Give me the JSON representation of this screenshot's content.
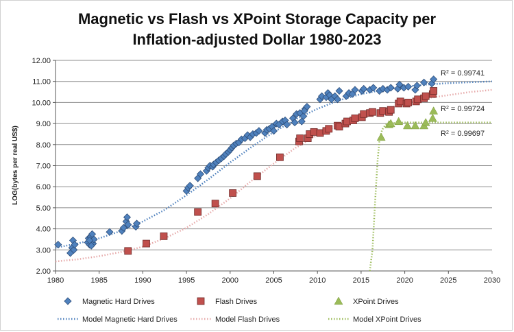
{
  "chart_data": {
    "type": "scatter",
    "title_lines": [
      "Magnetic vs Flash vs XPoint Storage Capacity per",
      "Inflation-adjusted Dollar 1980-2023"
    ],
    "xlabel": "",
    "ylabel": "LOG(bytes per real US$)",
    "xlim": [
      1980,
      2030
    ],
    "ylim": [
      2.0,
      12.0
    ],
    "xticks": [
      "1980",
      "1985",
      "1990",
      "1995",
      "2000",
      "2005",
      "2010",
      "2015",
      "2020",
      "2025",
      "2030"
    ],
    "yticks": [
      "2.00",
      "3.00",
      "4.00",
      "5.00",
      "6.00",
      "7.00",
      "8.00",
      "9.00",
      "10.00",
      "11.00",
      "12.00"
    ],
    "grid": "horizontal",
    "legend_position": "bottom",
    "series": [
      {
        "name": "Magnetic Hard Drives",
        "marker": "diamond",
        "color": "#4f81bd",
        "points": [
          [
            1980.3,
            3.25
          ],
          [
            1981.7,
            2.85
          ],
          [
            1981.9,
            3.1
          ],
          [
            1982.0,
            3.45
          ],
          [
            1982.1,
            3.0
          ],
          [
            1982.2,
            3.25
          ],
          [
            1983.7,
            3.35
          ],
          [
            1983.8,
            3.55
          ],
          [
            1983.9,
            3.25
          ],
          [
            1984.0,
            3.6
          ],
          [
            1984.1,
            3.4
          ],
          [
            1984.2,
            3.75
          ],
          [
            1984.3,
            3.3
          ],
          [
            1984.4,
            3.5
          ],
          [
            1984.1,
            3.2
          ],
          [
            1983.9,
            3.45
          ],
          [
            1986.2,
            3.85
          ],
          [
            1987.6,
            3.9
          ],
          [
            1987.8,
            4.05
          ],
          [
            1988.1,
            4.35
          ],
          [
            1988.2,
            4.55
          ],
          [
            1988.3,
            4.2
          ],
          [
            1989.2,
            4.1
          ],
          [
            1989.3,
            4.25
          ],
          [
            1995.0,
            5.8
          ],
          [
            1995.2,
            5.95
          ],
          [
            1995.4,
            6.05
          ],
          [
            1996.3,
            6.4
          ],
          [
            1996.6,
            6.6
          ],
          [
            1997.3,
            6.75
          ],
          [
            1997.5,
            6.9
          ],
          [
            1997.7,
            7.0
          ],
          [
            1998.0,
            6.95
          ],
          [
            1998.1,
            7.05
          ],
          [
            1998.4,
            7.15
          ],
          [
            1998.7,
            7.25
          ],
          [
            1999.0,
            7.35
          ],
          [
            1999.3,
            7.45
          ],
          [
            1999.5,
            7.55
          ],
          [
            1999.8,
            7.65
          ],
          [
            2000.0,
            7.75
          ],
          [
            2000.2,
            7.85
          ],
          [
            2000.4,
            7.95
          ],
          [
            2000.7,
            8.05
          ],
          [
            2001.0,
            8.1
          ],
          [
            2001.3,
            8.25
          ],
          [
            2001.7,
            8.3
          ],
          [
            2002.0,
            8.45
          ],
          [
            2002.3,
            8.35
          ],
          [
            2002.6,
            8.5
          ],
          [
            2003.0,
            8.55
          ],
          [
            2003.3,
            8.65
          ],
          [
            2004.0,
            8.55
          ],
          [
            2004.2,
            8.7
          ],
          [
            2004.5,
            8.75
          ],
          [
            2004.8,
            8.85
          ],
          [
            2005.0,
            8.65
          ],
          [
            2005.3,
            9.0
          ],
          [
            2005.6,
            8.95
          ],
          [
            2006.0,
            9.1
          ],
          [
            2006.3,
            9.15
          ],
          [
            2006.5,
            8.95
          ],
          [
            2007.2,
            9.25
          ],
          [
            2007.4,
            9.05
          ],
          [
            2007.6,
            9.45
          ],
          [
            2008.0,
            9.5
          ],
          [
            2008.2,
            9.1
          ],
          [
            2008.4,
            9.35
          ],
          [
            2008.6,
            9.7
          ],
          [
            2008.8,
            9.8
          ],
          [
            2008.5,
            9.6
          ],
          [
            2010.3,
            10.15
          ],
          [
            2010.5,
            10.3
          ],
          [
            2011.0,
            10.25
          ],
          [
            2011.2,
            10.45
          ],
          [
            2011.4,
            10.35
          ],
          [
            2011.6,
            10.15
          ],
          [
            2012.0,
            10.3
          ],
          [
            2012.3,
            10.15
          ],
          [
            2012.5,
            10.55
          ],
          [
            2013.3,
            10.3
          ],
          [
            2013.6,
            10.45
          ],
          [
            2014.0,
            10.4
          ],
          [
            2014.3,
            10.6
          ],
          [
            2015.1,
            10.55
          ],
          [
            2015.3,
            10.65
          ],
          [
            2016.0,
            10.6
          ],
          [
            2016.4,
            10.7
          ],
          [
            2017.1,
            10.55
          ],
          [
            2017.5,
            10.65
          ],
          [
            2018.0,
            10.6
          ],
          [
            2018.4,
            10.7
          ],
          [
            2019.2,
            10.65
          ],
          [
            2019.4,
            10.85
          ],
          [
            2019.9,
            10.7
          ],
          [
            2020.4,
            10.75
          ],
          [
            2021.2,
            10.6
          ],
          [
            2021.4,
            10.8
          ],
          [
            2022.2,
            10.95
          ],
          [
            2023.1,
            10.9
          ],
          [
            2023.3,
            11.1
          ]
        ]
      },
      {
        "name": "Flash Drives",
        "marker": "square",
        "color": "#c0504d",
        "points": [
          [
            1988.3,
            2.95
          ],
          [
            1990.4,
            3.3
          ],
          [
            1992.4,
            3.65
          ],
          [
            1996.3,
            4.8
          ],
          [
            1998.3,
            5.2
          ],
          [
            2000.3,
            5.7
          ],
          [
            2003.1,
            6.5
          ],
          [
            2005.7,
            7.4
          ],
          [
            2007.9,
            8.15
          ],
          [
            2008.0,
            8.3
          ],
          [
            2008.9,
            8.3
          ],
          [
            2009.1,
            8.5
          ],
          [
            2009.6,
            8.6
          ],
          [
            2010.3,
            8.55
          ],
          [
            2011.0,
            8.65
          ],
          [
            2011.3,
            8.75
          ],
          [
            2012.3,
            8.9
          ],
          [
            2012.5,
            8.85
          ],
          [
            2013.2,
            9.0
          ],
          [
            2013.4,
            9.1
          ],
          [
            2014.1,
            9.15
          ],
          [
            2014.3,
            9.25
          ],
          [
            2015.1,
            9.3
          ],
          [
            2015.3,
            9.45
          ],
          [
            2016.0,
            9.5
          ],
          [
            2016.3,
            9.55
          ],
          [
            2017.2,
            9.5
          ],
          [
            2017.5,
            9.6
          ],
          [
            2018.2,
            9.55
          ],
          [
            2018.4,
            9.65
          ],
          [
            2019.3,
            9.95
          ],
          [
            2019.5,
            10.05
          ],
          [
            2020.2,
            9.95
          ],
          [
            2020.4,
            10.0
          ],
          [
            2021.3,
            10.05
          ],
          [
            2021.5,
            10.15
          ],
          [
            2022.2,
            10.2
          ],
          [
            2022.4,
            10.3
          ],
          [
            2023.2,
            10.4
          ],
          [
            2023.3,
            10.55
          ]
        ]
      },
      {
        "name": "XPoint Drives",
        "marker": "triangle",
        "color": "#9bbb59",
        "points": [
          [
            2017.3,
            8.35
          ],
          [
            2018.2,
            8.95
          ],
          [
            2018.4,
            9.0
          ],
          [
            2019.3,
            9.1
          ],
          [
            2020.3,
            8.9
          ],
          [
            2021.2,
            8.9
          ],
          [
            2022.2,
            8.9
          ],
          [
            2022.4,
            9.05
          ],
          [
            2023.2,
            9.25
          ],
          [
            2023.3,
            9.6
          ]
        ]
      }
    ],
    "models": [
      {
        "name": "Model Magnetic Hard Drives",
        "color": "#4f81bd",
        "r2_label": "R",
        "r2_sup": "2",
        "r2_value": " = 0.99741",
        "points": [
          [
            1980,
            3.1
          ],
          [
            1982.5,
            3.3
          ],
          [
            1985,
            3.55
          ],
          [
            1987.5,
            3.9
          ],
          [
            1990,
            4.35
          ],
          [
            1992.5,
            4.9
          ],
          [
            1995,
            5.6
          ],
          [
            1997.5,
            6.35
          ],
          [
            2000,
            7.15
          ],
          [
            2002.5,
            7.9
          ],
          [
            2005,
            8.6
          ],
          [
            2007.5,
            9.2
          ],
          [
            2010,
            9.7
          ],
          [
            2012.5,
            10.1
          ],
          [
            2015,
            10.4
          ],
          [
            2017.5,
            10.6
          ],
          [
            2020,
            10.75
          ],
          [
            2022.5,
            10.85
          ],
          [
            2025,
            10.92
          ],
          [
            2027.5,
            10.96
          ],
          [
            2030,
            11.0
          ]
        ]
      },
      {
        "name": "Model Flash Drives",
        "color": "#e6a9a9",
        "r2_label": "R",
        "r2_sup": "2",
        "r2_value": " = 0.99724",
        "points": [
          [
            1980,
            2.45
          ],
          [
            1982.5,
            2.55
          ],
          [
            1985,
            2.7
          ],
          [
            1987.5,
            2.9
          ],
          [
            1990,
            3.15
          ],
          [
            1992.5,
            3.55
          ],
          [
            1995,
            4.05
          ],
          [
            1997.5,
            4.7
          ],
          [
            2000,
            5.45
          ],
          [
            2002.5,
            6.3
          ],
          [
            2005,
            7.1
          ],
          [
            2007.5,
            7.85
          ],
          [
            2010,
            8.45
          ],
          [
            2012.5,
            8.95
          ],
          [
            2015,
            9.35
          ],
          [
            2017.5,
            9.65
          ],
          [
            2020,
            9.95
          ],
          [
            2022.5,
            10.2
          ],
          [
            2025,
            10.35
          ],
          [
            2027.5,
            10.5
          ],
          [
            2030,
            10.6
          ]
        ]
      },
      {
        "name": "Model XPoint Drives",
        "color": "#9bbb59",
        "r2_label": "R",
        "r2_sup": "2",
        "r2_value": " = 0.99697",
        "points": [
          [
            2016.0,
            2.0
          ],
          [
            2016.3,
            3.0
          ],
          [
            2016.5,
            4.5
          ],
          [
            2016.7,
            6.0
          ],
          [
            2016.9,
            7.3
          ],
          [
            2017.1,
            8.2
          ],
          [
            2017.4,
            8.7
          ],
          [
            2017.8,
            8.95
          ],
          [
            2018.5,
            9.02
          ],
          [
            2020,
            9.05
          ],
          [
            2025,
            9.05
          ],
          [
            2030,
            9.05
          ]
        ]
      }
    ]
  }
}
